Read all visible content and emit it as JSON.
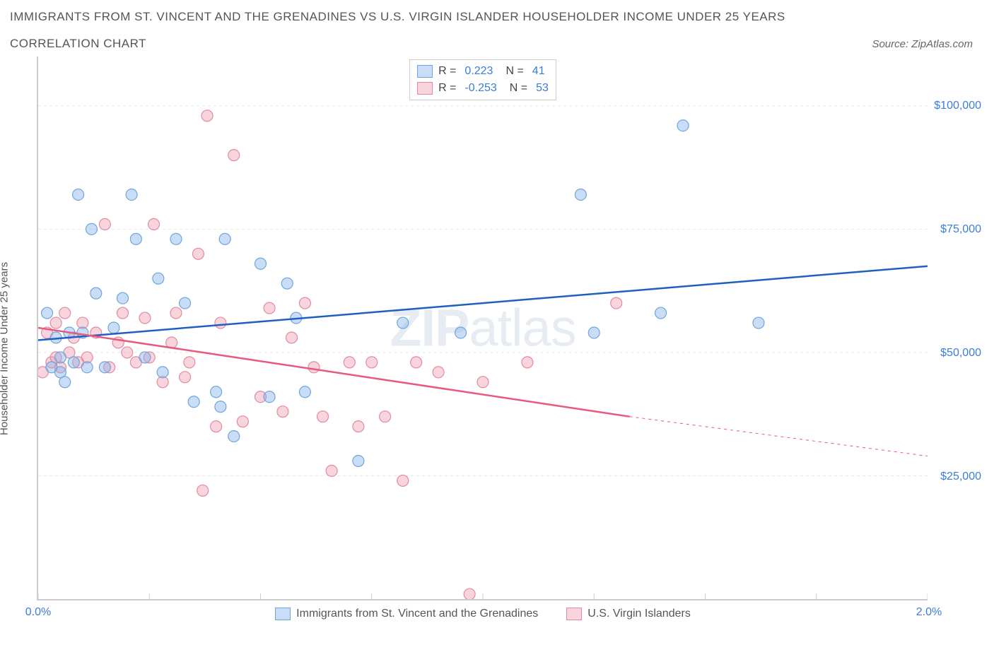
{
  "title": "IMMIGRANTS FROM ST. VINCENT AND THE GRENADINES VS U.S. VIRGIN ISLANDER HOUSEHOLDER INCOME UNDER 25 YEARS",
  "subtitle": "CORRELATION CHART",
  "source": "Source: ZipAtlas.com",
  "y_axis_label": "Householder Income Under 25 years",
  "watermark_bold": "ZIP",
  "watermark_rest": "atlas",
  "chart": {
    "type": "scatter",
    "background": "#ffffff",
    "grid_color": "#e5e5e5",
    "border_color": "#cccccc",
    "xlim": [
      0.0,
      2.0
    ],
    "ylim": [
      0,
      110000
    ],
    "x_ticks": [
      0.0,
      0.25,
      0.5,
      0.75,
      1.0,
      1.25,
      1.5,
      1.75,
      2.0
    ],
    "x_tick_labels": {
      "0": "0.0%",
      "2": "2.0%"
    },
    "y_ticks": [
      25000,
      50000,
      75000,
      100000
    ],
    "y_tick_labels": [
      "$25,000",
      "$50,000",
      "$75,000",
      "$100,000"
    ],
    "marker_radius": 8,
    "marker_stroke_width": 1.2,
    "line_width": 2.5,
    "series": [
      {
        "id": "immigrants",
        "name": "Immigrants from St. Vincent and the Grenadines",
        "fill": "rgba(135, 180, 235, 0.45)",
        "stroke": "#6fa5db",
        "line_color": "#1f5fc4",
        "R": "0.223",
        "N": "41",
        "points": [
          [
            0.02,
            58000
          ],
          [
            0.03,
            47000
          ],
          [
            0.04,
            53000
          ],
          [
            0.05,
            49000
          ],
          [
            0.05,
            46000
          ],
          [
            0.07,
            54000
          ],
          [
            0.08,
            48000
          ],
          [
            0.09,
            82000
          ],
          [
            0.1,
            54000
          ],
          [
            0.11,
            47000
          ],
          [
            0.12,
            75000
          ],
          [
            0.13,
            62000
          ],
          [
            0.15,
            47000
          ],
          [
            0.17,
            55000
          ],
          [
            0.19,
            61000
          ],
          [
            0.21,
            82000
          ],
          [
            0.22,
            73000
          ],
          [
            0.24,
            49000
          ],
          [
            0.27,
            65000
          ],
          [
            0.28,
            46000
          ],
          [
            0.31,
            73000
          ],
          [
            0.33,
            60000
          ],
          [
            0.35,
            40000
          ],
          [
            0.4,
            42000
          ],
          [
            0.41,
            39000
          ],
          [
            0.42,
            73000
          ],
          [
            0.44,
            33000
          ],
          [
            0.5,
            68000
          ],
          [
            0.52,
            41000
          ],
          [
            0.56,
            64000
          ],
          [
            0.58,
            57000
          ],
          [
            0.6,
            42000
          ],
          [
            0.72,
            28000
          ],
          [
            0.82,
            56000
          ],
          [
            0.95,
            54000
          ],
          [
            1.22,
            82000
          ],
          [
            1.25,
            54000
          ],
          [
            1.4,
            58000
          ],
          [
            1.45,
            96000
          ],
          [
            1.62,
            56000
          ],
          [
            0.06,
            44000
          ]
        ],
        "trend": {
          "x0": 0.0,
          "y0": 52500,
          "x1": 2.0,
          "y1": 67500
        }
      },
      {
        "id": "usvi",
        "name": "U.S. Virgin Islanders",
        "fill": "rgba(240, 160, 180, 0.45)",
        "stroke": "#e389a0",
        "line_color": "#e65a7e",
        "R": "-0.253",
        "N": "53",
        "points": [
          [
            0.01,
            46000
          ],
          [
            0.02,
            54000
          ],
          [
            0.03,
            48000
          ],
          [
            0.04,
            56000
          ],
          [
            0.04,
            49000
          ],
          [
            0.05,
            47000
          ],
          [
            0.06,
            58000
          ],
          [
            0.07,
            50000
          ],
          [
            0.08,
            53000
          ],
          [
            0.09,
            48000
          ],
          [
            0.1,
            56000
          ],
          [
            0.11,
            49000
          ],
          [
            0.13,
            54000
          ],
          [
            0.15,
            76000
          ],
          [
            0.16,
            47000
          ],
          [
            0.18,
            52000
          ],
          [
            0.19,
            58000
          ],
          [
            0.2,
            50000
          ],
          [
            0.22,
            48000
          ],
          [
            0.24,
            57000
          ],
          [
            0.25,
            49000
          ],
          [
            0.26,
            76000
          ],
          [
            0.28,
            44000
          ],
          [
            0.3,
            52000
          ],
          [
            0.31,
            58000
          ],
          [
            0.33,
            45000
          ],
          [
            0.34,
            48000
          ],
          [
            0.36,
            70000
          ],
          [
            0.37,
            22000
          ],
          [
            0.38,
            98000
          ],
          [
            0.4,
            35000
          ],
          [
            0.41,
            56000
          ],
          [
            0.44,
            90000
          ],
          [
            0.46,
            36000
          ],
          [
            0.5,
            41000
          ],
          [
            0.52,
            59000
          ],
          [
            0.55,
            38000
          ],
          [
            0.57,
            53000
          ],
          [
            0.6,
            60000
          ],
          [
            0.62,
            47000
          ],
          [
            0.64,
            37000
          ],
          [
            0.66,
            26000
          ],
          [
            0.7,
            48000
          ],
          [
            0.72,
            35000
          ],
          [
            0.75,
            48000
          ],
          [
            0.78,
            37000
          ],
          [
            0.82,
            24000
          ],
          [
            0.85,
            48000
          ],
          [
            0.9,
            46000
          ],
          [
            0.97,
            1000
          ],
          [
            1.0,
            44000
          ],
          [
            1.1,
            48000
          ],
          [
            1.3,
            60000
          ]
        ],
        "trend": {
          "x0": 0.0,
          "y0": 55000,
          "x1": 1.33,
          "y1": 37000
        },
        "trend_ext": {
          "x0": 1.33,
          "y0": 37000,
          "x1": 2.0,
          "y1": 29000
        }
      }
    ]
  },
  "legend_box": {
    "r_label": "R =",
    "n_label": "N ="
  }
}
